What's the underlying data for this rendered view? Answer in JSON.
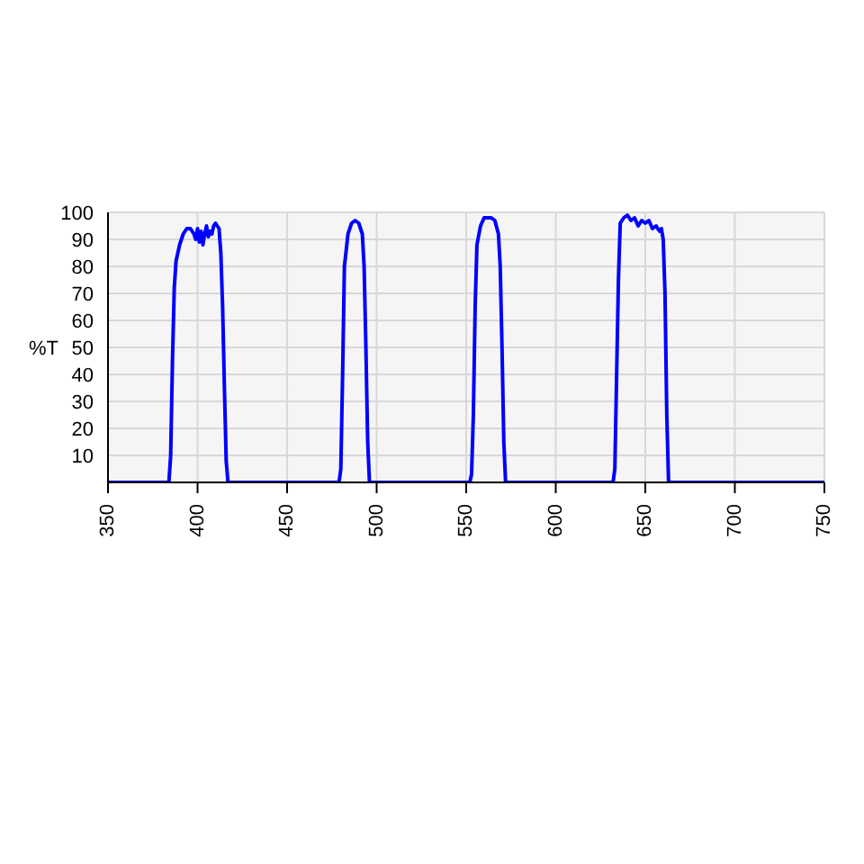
{
  "chart_data": {
    "type": "line",
    "ylabel": "%T",
    "xlim": [
      350,
      750
    ],
    "ylim": [
      0,
      100
    ],
    "xticks": [
      350,
      400,
      450,
      500,
      550,
      600,
      650,
      700,
      750
    ],
    "yticks": [
      {
        "value": 0,
        "label": null
      },
      10,
      20,
      30,
      40,
      50,
      60,
      70,
      80,
      90,
      100
    ],
    "grid": true,
    "marker": "none",
    "line_style": "solid",
    "series": [
      {
        "color": "#0000ff",
        "x": [
          350,
          384,
          385,
          386,
          387,
          388,
          390,
          392,
          394,
          396,
          398,
          399,
          400,
          401,
          402,
          403,
          404,
          405,
          406,
          407,
          408,
          409,
          410,
          411,
          412,
          413,
          414,
          415,
          416,
          417,
          418,
          420,
          479,
          480,
          481,
          482,
          484,
          486,
          488,
          490,
          492,
          493,
          494,
          495,
          496,
          498,
          552,
          553,
          554,
          555,
          556,
          558,
          560,
          562,
          564,
          566,
          568,
          569,
          570,
          571,
          572,
          574,
          632,
          633,
          634,
          635,
          636,
          637,
          638,
          640,
          642,
          644,
          646,
          648,
          650,
          652,
          654,
          656,
          658,
          659,
          660,
          661,
          662,
          663,
          665,
          750
        ],
        "values": [
          0,
          0,
          10,
          45,
          72,
          82,
          88,
          92,
          94,
          94,
          92,
          90,
          94,
          89,
          93,
          88,
          92,
          95,
          91,
          93,
          92,
          95,
          96,
          95,
          94,
          85,
          65,
          35,
          8,
          0,
          0,
          0,
          0,
          5,
          40,
          80,
          92,
          96,
          97,
          96,
          92,
          80,
          50,
          15,
          0,
          0,
          0,
          3,
          25,
          65,
          88,
          95,
          98,
          98,
          98,
          97,
          92,
          80,
          50,
          15,
          0,
          0,
          0,
          5,
          40,
          75,
          96,
          97,
          98,
          99,
          97,
          98,
          95,
          97,
          96,
          97,
          94,
          95,
          93,
          94,
          90,
          70,
          25,
          0,
          0,
          0
        ]
      }
    ]
  }
}
